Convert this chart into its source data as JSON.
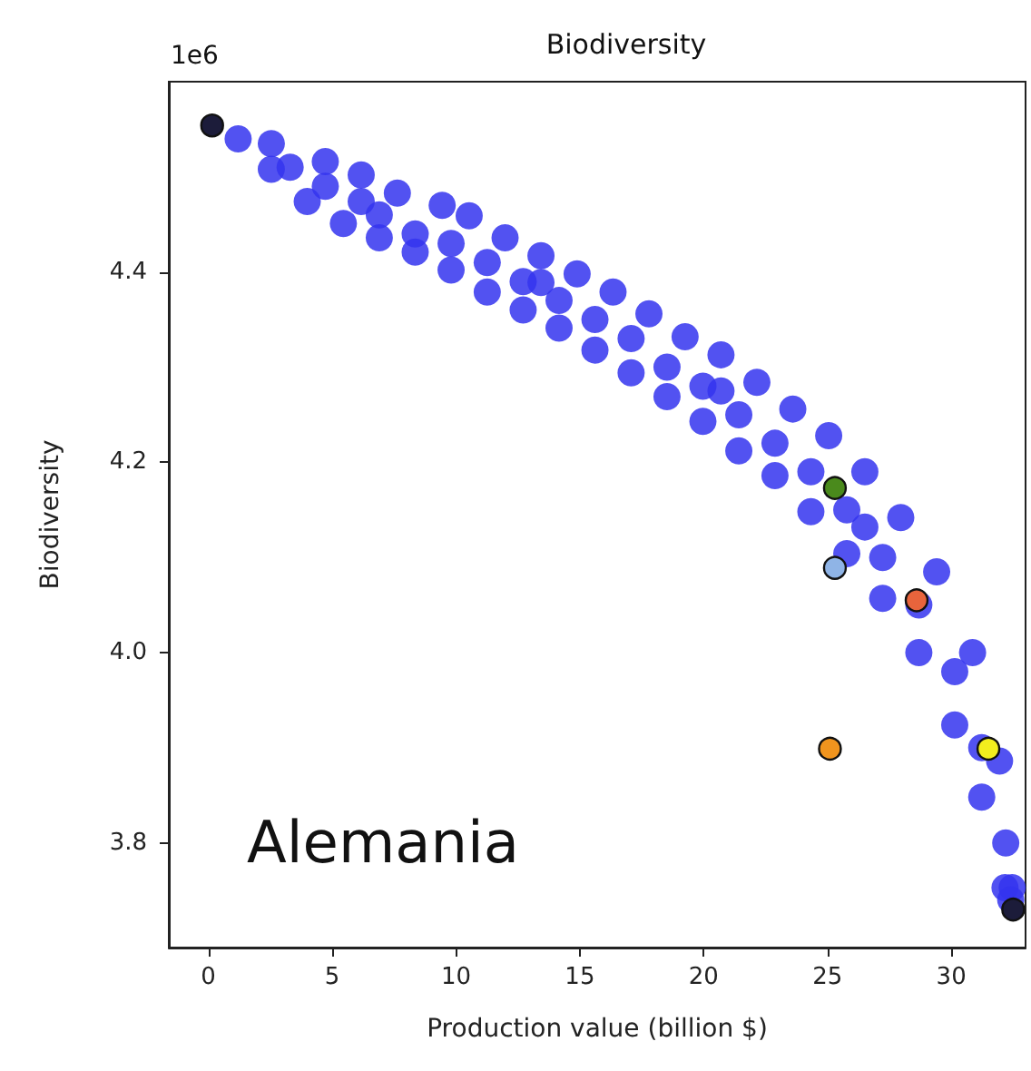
{
  "chart_data": {
    "type": "scatter",
    "title": "Biodiversity",
    "xlabel": "Production value (billion $)",
    "ylabel": "Biodiversity",
    "annotations": [
      "1e6",
      "Alemania"
    ],
    "xlim": [
      -1.6,
      33
    ],
    "xticks": [
      0,
      5,
      10,
      15,
      20,
      25,
      30
    ],
    "ylim": [
      3.69,
      4.6
    ],
    "yticks": [
      {
        "value": 3.8,
        "label": "3.8"
      },
      {
        "value": 4.0,
        "label": "4.0"
      },
      {
        "value": 4.2,
        "label": "4.2"
      },
      {
        "value": 4.4,
        "label": "4.4"
      }
    ],
    "grid": false,
    "marker": "circle",
    "series": [
      {
        "color": "#3434ee",
        "x": [
          1.2,
          2.54,
          4.72,
          6.17,
          7.63,
          9.44,
          10.53,
          11.98,
          13.43,
          14.89,
          16.34,
          17.79,
          19.25,
          20.7,
          22.15,
          23.6,
          25.05,
          26.51,
          27.96,
          29.41,
          30.86,
          31.95,
          32.46,
          2.54,
          3.99,
          5.45,
          6.9,
          8.35,
          9.8,
          11.26,
          12.71,
          14.16,
          15.61,
          17.07,
          18.52,
          19.97,
          21.42,
          22.88,
          24.33,
          25.78,
          27.23,
          28.69,
          30.14,
          31.23,
          32.17,
          6.17,
          13.43,
          20.7,
          26.51,
          3.3,
          4.72,
          6.9,
          8.35,
          9.8,
          11.26,
          12.71,
          14.16,
          15.61,
          17.07,
          18.52,
          19.97,
          21.42,
          22.88,
          24.33,
          25.78,
          27.23,
          28.69,
          30.14,
          31.23,
          32.2,
          32.4
        ],
        "values": [
          4.54,
          4.535,
          4.516,
          4.502,
          4.483,
          4.47,
          4.459,
          4.436,
          4.417,
          4.398,
          4.379,
          4.356,
          4.332,
          4.313,
          4.284,
          4.256,
          4.228,
          4.19,
          4.142,
          4.085,
          4.0,
          3.886,
          3.753,
          4.508,
          4.474,
          4.451,
          4.436,
          4.421,
          4.402,
          4.379,
          4.36,
          4.341,
          4.318,
          4.294,
          4.269,
          4.243,
          4.212,
          4.186,
          4.148,
          4.104,
          4.057,
          4.0,
          3.924,
          3.848,
          3.753,
          4.474,
          4.389,
          4.275,
          4.132,
          4.51,
          4.49,
          4.46,
          4.44,
          4.43,
          4.41,
          4.39,
          4.37,
          4.35,
          4.33,
          4.3,
          4.28,
          4.25,
          4.22,
          4.19,
          4.15,
          4.1,
          4.05,
          3.98,
          3.9,
          3.8,
          3.74
        ]
      },
      {
        "color": "#1c1c3a",
        "x": [
          0.15,
          32.5
        ],
        "values": [
          4.554,
          3.73
        ]
      },
      {
        "color": "#4a8a1c",
        "x": [
          25.3
        ],
        "values": [
          4.173
        ]
      },
      {
        "color": "#8fb4e6",
        "x": [
          25.3
        ],
        "values": [
          4.089
        ]
      },
      {
        "color": "#e8643c",
        "x": [
          28.6
        ],
        "values": [
          4.055
        ]
      },
      {
        "color": "#f0941e",
        "x": [
          25.1
        ],
        "values": [
          3.899
        ]
      },
      {
        "color": "#f2ee1e",
        "x": [
          31.5
        ],
        "values": [
          3.899
        ]
      }
    ]
  }
}
